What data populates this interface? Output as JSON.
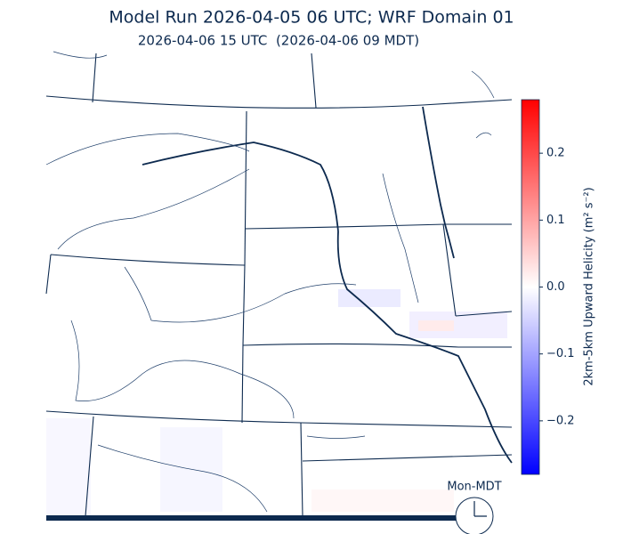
{
  "header": {
    "title": "Model Run 2026-04-05 06 UTC; WRF Domain 01",
    "subtitle": "2026-04-06 15 UTC  (2026-04-06 09 MDT)"
  },
  "colorbar": {
    "label": "2km-5km Upward Helicity (m² s⁻²)",
    "lim": [
      -0.28,
      0.28
    ],
    "ticks": [
      0.2,
      0.1,
      {
        "value": 0,
        "label": "0.0"
      },
      {
        "value": -0.1,
        "label": "−0.1"
      },
      {
        "value": -0.2,
        "label": "−0.2"
      }
    ]
  },
  "clock": {
    "label": "Mon-MDT"
  }
}
